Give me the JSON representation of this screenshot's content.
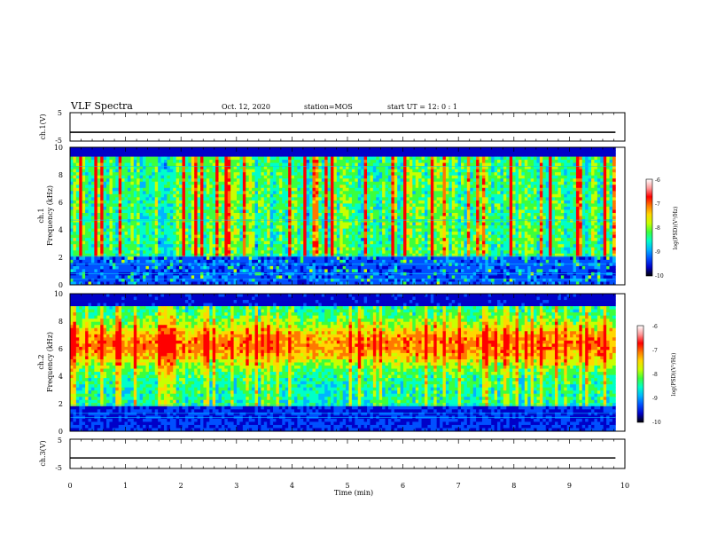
{
  "header": {
    "title": "VLF Spectra",
    "date": "Oct. 12, 2020",
    "station": "station=MOS",
    "start": "start  UT  =   12: 0  : 1"
  },
  "chart_data": [
    {
      "type": "line",
      "panel": "ch1-waveform",
      "ylabel": "ch.1(V)",
      "ylim": [
        -5,
        5
      ],
      "yticks": [
        5,
        -5
      ],
      "series": [
        {
          "x": [
            0,
            9.83
          ],
          "values": [
            -1.9,
            -1.9
          ]
        }
      ]
    },
    {
      "type": "heatmap",
      "panel": "ch1-spectrogram",
      "ylabel_top": "ch.1",
      "ylabel": "Frequency  (kHz)",
      "ylim": [
        0,
        10
      ],
      "yticks": [
        "0",
        "2",
        "4",
        "6",
        "8",
        "10"
      ],
      "xlim": [
        0,
        10
      ],
      "data_extent_min": 9.83,
      "colorbar": {
        "label": "log(PSD)(V²/Hz)",
        "range": [
          -10,
          -6
        ],
        "ticks": [
          "-6",
          "-7",
          "-8",
          "-9",
          "-10"
        ]
      }
    },
    {
      "type": "heatmap",
      "panel": "ch2-spectrogram",
      "ylabel_top": "ch.2",
      "ylabel": "Frequency  (kHz)",
      "ylim": [
        0,
        10
      ],
      "yticks": [
        "0",
        "2",
        "4",
        "6",
        "8",
        "10"
      ],
      "xlim": [
        0,
        10
      ],
      "data_extent_min": 9.83,
      "colorbar": {
        "label": "log(PSD)(V²/Hz)",
        "range": [
          -10,
          -6
        ],
        "ticks": [
          "-6",
          "-7",
          "-8",
          "-9",
          "-10"
        ]
      }
    },
    {
      "type": "line",
      "panel": "ch3-waveform",
      "ylabel": "ch.3(V)",
      "ylim": [
        -5,
        5
      ],
      "yticks": [
        5,
        -5
      ],
      "xlabel": "Time  (min)",
      "xlim": [
        0,
        10
      ],
      "xticks": [
        "0",
        "1",
        "2",
        "3",
        "4",
        "5",
        "6",
        "7",
        "8",
        "9",
        "10"
      ],
      "series": [
        {
          "x": [
            0,
            9.83
          ],
          "values": [
            -1.4,
            -1.4
          ]
        }
      ]
    }
  ],
  "colormap": [
    "#000000",
    "#0000c8",
    "#0050ff",
    "#00b4ff",
    "#00ffc8",
    "#3cff3c",
    "#c8ff00",
    "#ffd700",
    "#ff7800",
    "#ff0000",
    "#ff9a9a",
    "#ffffff"
  ]
}
